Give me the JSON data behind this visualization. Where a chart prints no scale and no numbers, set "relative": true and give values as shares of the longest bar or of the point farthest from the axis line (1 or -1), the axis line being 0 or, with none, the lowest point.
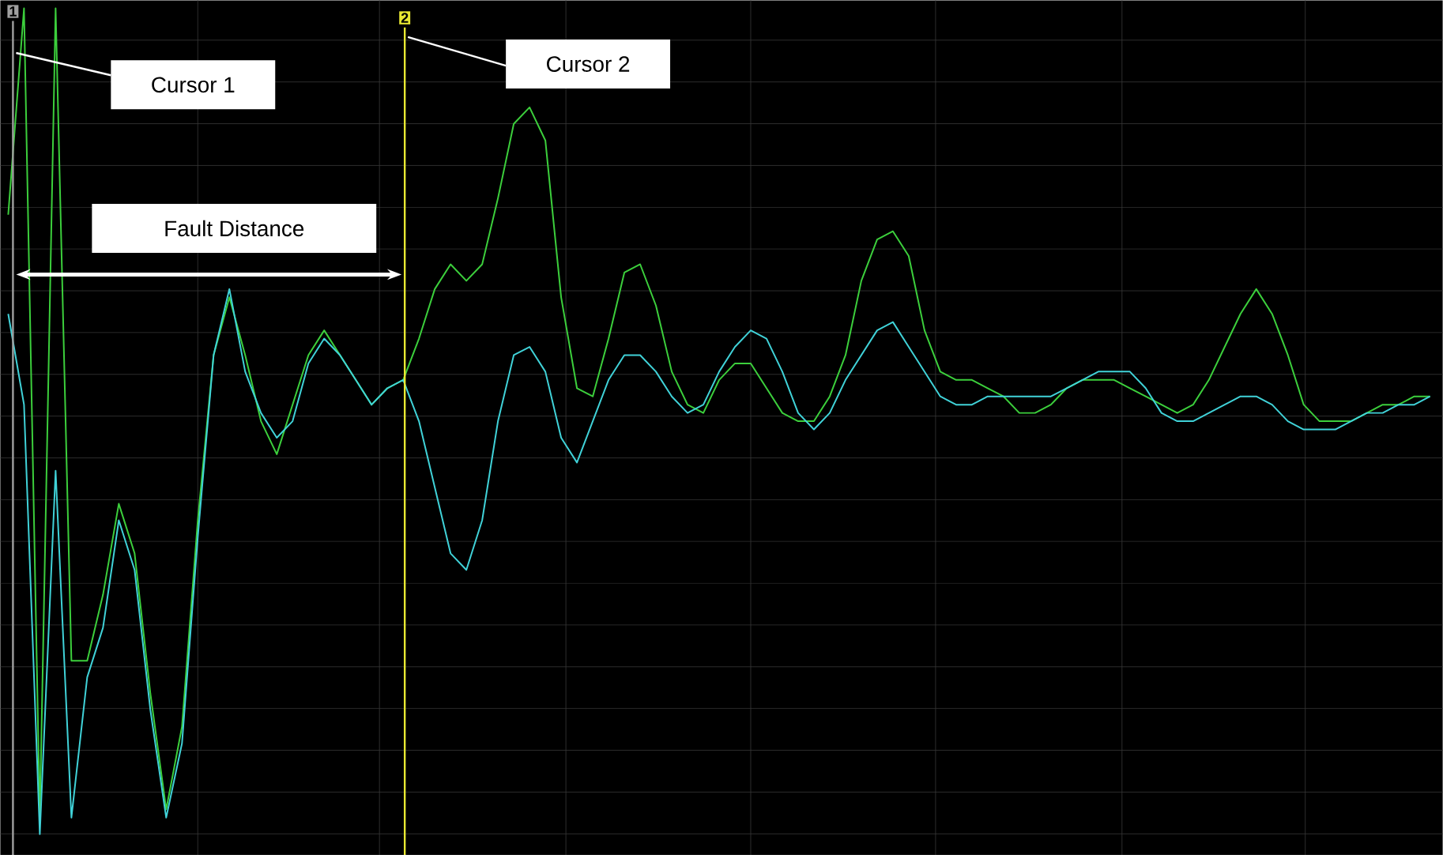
{
  "chart_data": {
    "type": "line",
    "relative": true,
    "grid": true,
    "marker": "none",
    "line_style": "solid",
    "categories": [
      null,
      null,
      null,
      null,
      null,
      null,
      null,
      null,
      null,
      null,
      null,
      null,
      null,
      null,
      null,
      null,
      null,
      null,
      null,
      null,
      null,
      null,
      null,
      null,
      null,
      null,
      null,
      null,
      null,
      null,
      null,
      null,
      null,
      null,
      null,
      null,
      null,
      null,
      null,
      null,
      null,
      null,
      null,
      null,
      null,
      null,
      null,
      null,
      null,
      null,
      null,
      null,
      null,
      null,
      null,
      null,
      null,
      null,
      null,
      null,
      null,
      null,
      null,
      null,
      null,
      null,
      null,
      null,
      null,
      null,
      null,
      null,
      null,
      null,
      null,
      null,
      null,
      null,
      null,
      null,
      null,
      null,
      null,
      null,
      null,
      null,
      null,
      null,
      null,
      null,
      null
    ],
    "series": [
      {
        "color": "#3ccf3c",
        "values": [
          0.75,
          1,
          0.02,
          1,
          0.21,
          0.21,
          0.29,
          0.4,
          0.34,
          0.17,
          0.03,
          0.13,
          0.38,
          0.58,
          0.65,
          0.58,
          0.5,
          0.46,
          0.52,
          0.58,
          0.61,
          0.58,
          0.55,
          0.52,
          0.54,
          0.55,
          0.6,
          0.66,
          0.69,
          0.67,
          0.69,
          0.77,
          0.86,
          0.88,
          0.84,
          0.65,
          0.54,
          0.53,
          0.6,
          0.68,
          0.69,
          0.64,
          0.56,
          0.52,
          0.51,
          0.55,
          0.57,
          0.57,
          0.54,
          0.51,
          0.5,
          0.5,
          0.53,
          0.58,
          0.67,
          0.72,
          0.73,
          0.7,
          0.61,
          0.56,
          0.55,
          0.55,
          0.54,
          0.53,
          0.51,
          0.51,
          0.52,
          0.54,
          0.55,
          0.55,
          0.55,
          0.54,
          0.53,
          0.52,
          0.51,
          0.52,
          0.55,
          0.59,
          0.63,
          0.66,
          0.63,
          0.58,
          0.52,
          0.5,
          0.5,
          0.5,
          0.51,
          0.52,
          0.52,
          0.53,
          0.53
        ]
      },
      {
        "color": "#40d2d8",
        "values": [
          0.63,
          0.52,
          0,
          0.44,
          0.02,
          0.19,
          0.25,
          0.38,
          0.32,
          0.15,
          0.02,
          0.11,
          0.36,
          0.58,
          0.66,
          0.56,
          0.51,
          0.48,
          0.5,
          0.57,
          0.6,
          0.58,
          0.55,
          0.52,
          0.54,
          0.55,
          0.5,
          0.42,
          0.34,
          0.32,
          0.38,
          0.5,
          0.58,
          0.59,
          0.56,
          0.48,
          0.45,
          0.5,
          0.55,
          0.58,
          0.58,
          0.56,
          0.53,
          0.51,
          0.52,
          0.56,
          0.59,
          0.61,
          0.6,
          0.56,
          0.51,
          0.49,
          0.51,
          0.55,
          0.58,
          0.61,
          0.62,
          0.59,
          0.56,
          0.53,
          0.52,
          0.52,
          0.53,
          0.53,
          0.53,
          0.53,
          0.53,
          0.54,
          0.55,
          0.56,
          0.56,
          0.56,
          0.54,
          0.51,
          0.5,
          0.5,
          0.51,
          0.52,
          0.53,
          0.53,
          0.52,
          0.5,
          0.49,
          0.49,
          0.49,
          0.5,
          0.51,
          0.51,
          0.52,
          0.52,
          0.53
        ]
      }
    ],
    "annotations": [
      "1",
      "2",
      "Cursor 1",
      "Cursor 2",
      "Fault Distance"
    ]
  }
}
